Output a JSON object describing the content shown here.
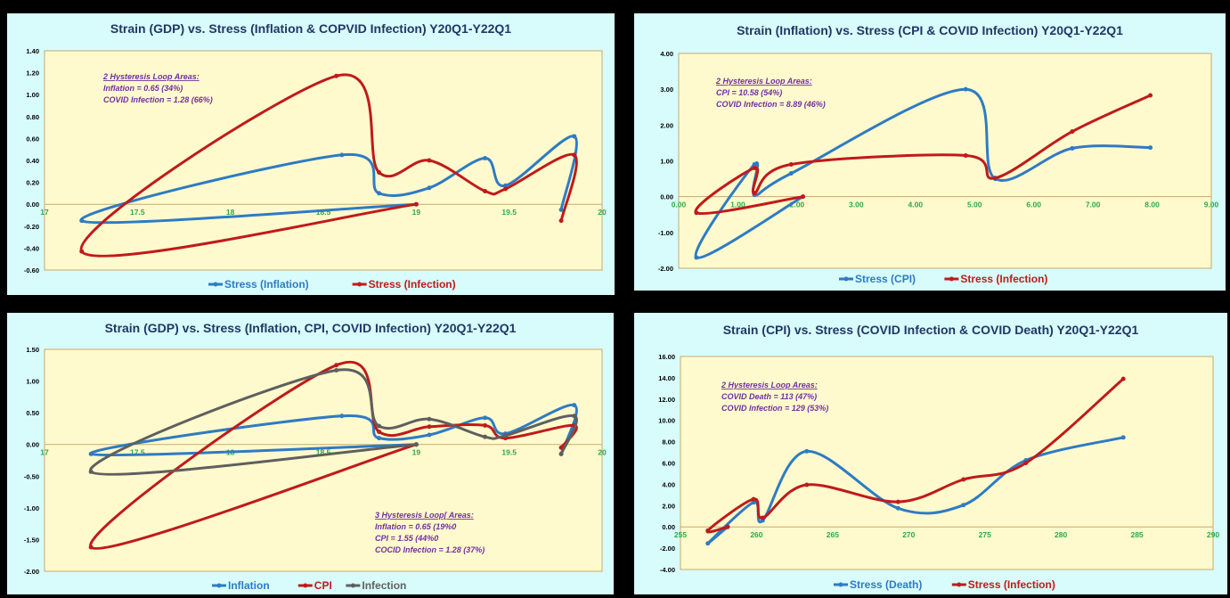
{
  "colors": {
    "panel_bg": "#d8fbfb",
    "plot_bg": "#fffacd",
    "plot_border": "#c8a96e",
    "blue": "#2e7bc4",
    "red": "#c01a1a",
    "grey": "#5f5f5f",
    "title": "#1f3864",
    "annotation": "#7030a0",
    "x_tick": "#2ea84a"
  },
  "chart_data": [
    {
      "type": "scatter",
      "title": "Strain (GDP) vs. Stress (Inflation & COPVID Infection)  Y20Q1-Y22Q1",
      "xlim": [
        17,
        20
      ],
      "ylim": [
        -0.6,
        1.4
      ],
      "x_ticks": [
        "17",
        "17.5",
        "18",
        "18.5",
        "19",
        "19.5",
        "20"
      ],
      "x_tick_values": [
        17,
        17.5,
        18,
        18.5,
        19,
        19.5,
        20
      ],
      "y_ticks": [
        "1.40",
        "1.20",
        "1.00",
        "0.80",
        "0.60",
        "0.40",
        "0.20",
        "0.00",
        "-0.20",
        "-0.40",
        "-0.60"
      ],
      "y_tick_values": [
        1.4,
        1.2,
        1.0,
        0.8,
        0.6,
        0.4,
        0.2,
        0.0,
        -0.2,
        -0.4,
        -0.6
      ],
      "annotation": {
        "header": "2 Hysteresis Loop Areas:",
        "lines": [
          "Inflation = 0.65 (34%)",
          "COVID Infection = 1.28 (66%)"
        ]
      },
      "series": [
        {
          "name": "Stress (Inflation)",
          "color": "#2e7bc4",
          "points": [
            [
              19.0,
              0.0
            ],
            [
              17.2,
              -0.15
            ],
            [
              18.6,
              0.45
            ],
            [
              18.8,
              0.1
            ],
            [
              19.07,
              0.15
            ],
            [
              19.37,
              0.42
            ],
            [
              19.48,
              0.17
            ],
            [
              19.85,
              0.62
            ],
            [
              19.78,
              -0.05
            ]
          ]
        },
        {
          "name": "Stress (Infection)",
          "color": "#c01a1a",
          "points": [
            [
              19.0,
              0.0
            ],
            [
              17.2,
              -0.43
            ],
            [
              18.57,
              1.17
            ],
            [
              18.8,
              0.29
            ],
            [
              19.07,
              0.4
            ],
            [
              19.37,
              0.12
            ],
            [
              19.48,
              0.14
            ],
            [
              19.85,
              0.45
            ],
            [
              19.78,
              -0.15
            ]
          ]
        }
      ]
    },
    {
      "type": "scatter",
      "title": "Strain (Inflation) vs. Stress (CPI & COVID Infection)  Y20Q1-Y22Q1",
      "xlim": [
        0,
        9
      ],
      "ylim": [
        -2,
        4
      ],
      "x_ticks": [
        "0.00",
        "1.00",
        "2.00",
        "3.00",
        "4.00",
        "5.00",
        "6.00",
        "7.00",
        "8.00",
        "9.00"
      ],
      "x_tick_values": [
        0,
        1,
        2,
        3,
        4,
        5,
        6,
        7,
        8,
        9
      ],
      "y_ticks": [
        "4.00",
        "3.00",
        "2.00",
        "1.00",
        "0.00",
        "-1.00",
        "-2.00"
      ],
      "y_tick_values": [
        4,
        3,
        2,
        1,
        0,
        -1,
        -2
      ],
      "annotation": {
        "header": "2 Hysteresis Loop Areas:",
        "lines": [
          "CPI = 10.58 (54%)",
          "COVID Infection = 8.89 (46%)"
        ]
      },
      "series": [
        {
          "name": "Stress (CPI)",
          "color": "#2e7bc4",
          "points": [
            [
              2.1,
              0.0
            ],
            [
              0.3,
              -1.7
            ],
            [
              1.28,
              0.9
            ],
            [
              1.28,
              0.05
            ],
            [
              1.9,
              0.65
            ],
            [
              4.85,
              3.0
            ],
            [
              5.35,
              0.5
            ],
            [
              6.65,
              1.35
            ],
            [
              7.97,
              1.37
            ]
          ]
        },
        {
          "name": "Stress (Infection)",
          "color": "#c01a1a",
          "points": [
            [
              2.1,
              0.0
            ],
            [
              0.3,
              -0.45
            ],
            [
              1.28,
              0.8
            ],
            [
              1.28,
              0.1
            ],
            [
              1.9,
              0.9
            ],
            [
              4.85,
              1.15
            ],
            [
              5.35,
              0.52
            ],
            [
              6.65,
              1.82
            ],
            [
              7.97,
              2.83
            ]
          ]
        }
      ]
    },
    {
      "type": "scatter",
      "title": "Strain (GDP) vs. Stress (Inflation, CPI, COVID Infection)  Y20Q1-Y22Q1",
      "xlim": [
        17,
        20
      ],
      "ylim": [
        -2,
        1.5
      ],
      "x_ticks": [
        "17",
        "17.5",
        "18",
        "18.5",
        "19",
        "19.5",
        "20"
      ],
      "x_tick_values": [
        17,
        17.5,
        18,
        18.5,
        19,
        19.5,
        20
      ],
      "y_ticks": [
        "1.50",
        "1.00",
        "0.50",
        "0.00",
        "-0.50",
        "-1.00",
        "-1.50",
        "-2.00"
      ],
      "y_tick_values": [
        1.5,
        1.0,
        0.5,
        0.0,
        -0.5,
        -1.0,
        -1.5,
        -2.0
      ],
      "annotation": {
        "header": "3 Hysteresis Loop[ Areas:",
        "lines": [
          "Inflation = 0.65 (19%0",
          "CPI = 1.55 (44%0",
          "COCID Infection = 1.28 (37%)"
        ]
      },
      "series": [
        {
          "name": "Inflation",
          "color": "#2e7bc4",
          "points": [
            [
              19.0,
              0.0
            ],
            [
              17.25,
              -0.15
            ],
            [
              18.6,
              0.45
            ],
            [
              18.8,
              0.1
            ],
            [
              19.07,
              0.15
            ],
            [
              19.37,
              0.42
            ],
            [
              19.48,
              0.17
            ],
            [
              19.85,
              0.62
            ],
            [
              19.78,
              -0.15
            ]
          ]
        },
        {
          "name": "CPI",
          "color": "#c01a1a",
          "points": [
            [
              19.0,
              0.0
            ],
            [
              17.25,
              -1.62
            ],
            [
              18.57,
              1.25
            ],
            [
              18.8,
              0.2
            ],
            [
              19.07,
              0.28
            ],
            [
              19.37,
              0.3
            ],
            [
              19.48,
              0.1
            ],
            [
              19.85,
              0.3
            ],
            [
              19.78,
              -0.05
            ]
          ]
        },
        {
          "name": "Infection",
          "color": "#5f5f5f",
          "points": [
            [
              19.0,
              0.0
            ],
            [
              17.25,
              -0.43
            ],
            [
              18.57,
              1.17
            ],
            [
              18.8,
              0.29
            ],
            [
              19.07,
              0.4
            ],
            [
              19.37,
              0.12
            ],
            [
              19.48,
              0.14
            ],
            [
              19.85,
              0.45
            ],
            [
              19.78,
              -0.15
            ]
          ]
        }
      ]
    },
    {
      "type": "scatter",
      "title": "Strain (CPI) vs. Stress (COVID Infection & COVID Death)  Y20Q1-Y22Q1",
      "xlim": [
        255,
        290
      ],
      "ylim": [
        -4,
        16
      ],
      "x_ticks": [
        "255",
        "260",
        "265",
        "270",
        "275",
        "280",
        "285",
        "290"
      ],
      "x_tick_values": [
        255,
        260,
        265,
        270,
        275,
        280,
        285,
        290
      ],
      "y_ticks": [
        "16.00",
        "14.00",
        "12.00",
        "10.00",
        "8.00",
        "6.00",
        "4.00",
        "2.00",
        "0.00",
        "-2.00",
        "-4.00"
      ],
      "y_tick_values": [
        16,
        14,
        12,
        10,
        8,
        6,
        4,
        2,
        0,
        -2,
        -4
      ],
      "annotation": {
        "header": "2 Hysteresis Loop Areas:",
        "lines": [
          "COVID Death = 113 (47%)",
          "COVID Infection = 129 (53%)"
        ]
      },
      "series": [
        {
          "name": "Stress (Death)",
          "color": "#2e7bc4",
          "points": [
            [
              258.1,
              0.0
            ],
            [
              256.8,
              -1.55
            ],
            [
              259.8,
              2.3
            ],
            [
              260.4,
              0.6
            ],
            [
              263.3,
              7.1
            ],
            [
              269.3,
              1.75
            ],
            [
              273.6,
              2.05
            ],
            [
              277.7,
              6.25
            ],
            [
              284.1,
              8.4
            ]
          ]
        },
        {
          "name": "Stress (Infection)",
          "color": "#c01a1a",
          "points": [
            [
              258.1,
              0.0
            ],
            [
              256.8,
              -0.35
            ],
            [
              259.8,
              2.6
            ],
            [
              260.4,
              0.85
            ],
            [
              263.3,
              3.95
            ],
            [
              269.3,
              2.35
            ],
            [
              273.6,
              4.45
            ],
            [
              277.7,
              6.0
            ],
            [
              284.1,
              13.9
            ]
          ]
        }
      ]
    }
  ]
}
